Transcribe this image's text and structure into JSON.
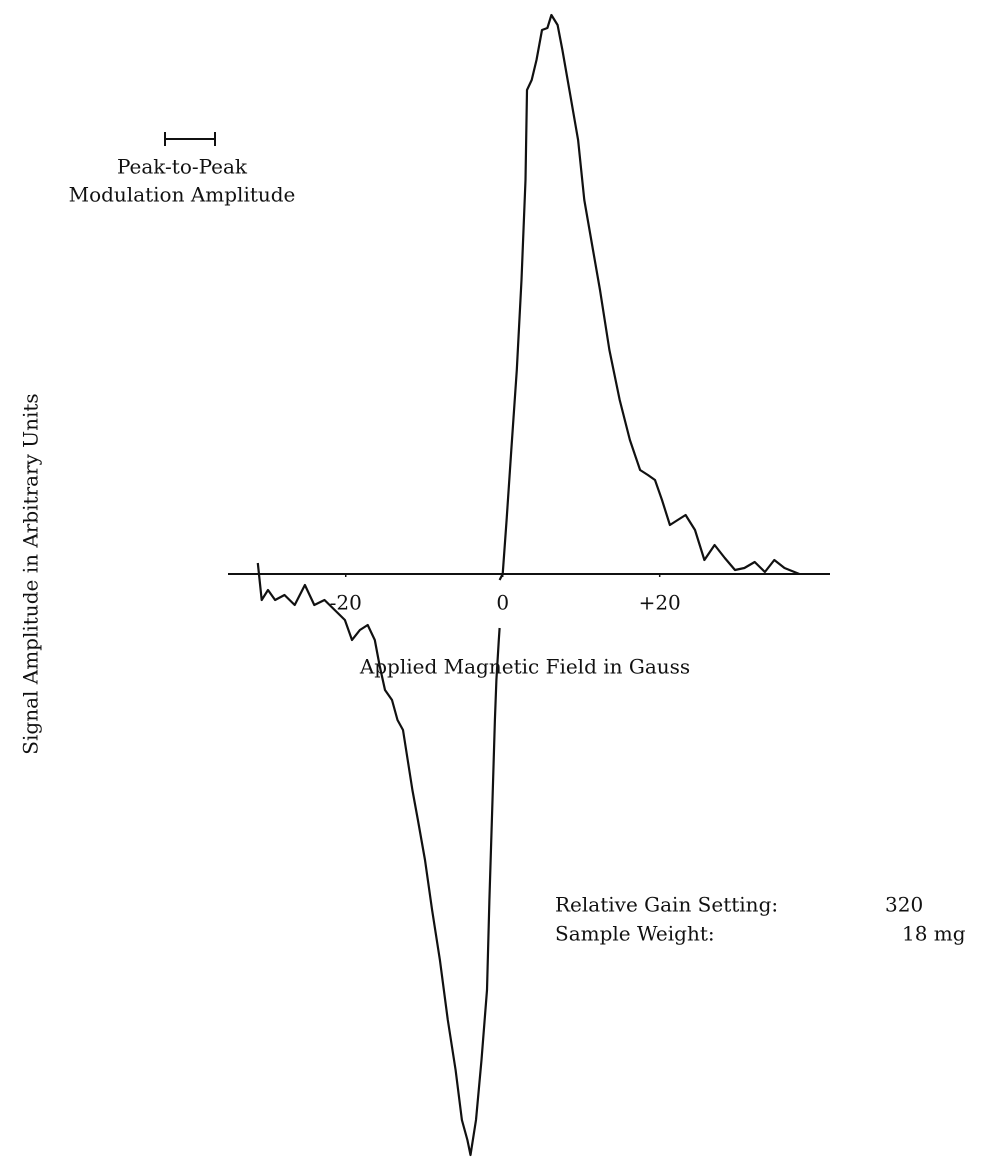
{
  "chart_data": {
    "type": "line",
    "x_label": "Applied Magnetic Field in Gauss",
    "y_label": "Signal Amplitude in Arbitrary Units",
    "annotations": [
      "Peak-to-Peak",
      "Modulation Amplitude",
      "Relative Gain Setting:",
      "320",
      "Sample Weight:",
      "18 mg"
    ],
    "color": "#111111",
    "xlim": [
      -35,
      41.7
    ],
    "ylim": [
      -58.8,
      57.4
    ],
    "xticks": [
      -20,
      0,
      {
        "value": 20,
        "label": "+20"
      }
    ],
    "x": [
      -31.2,
      -30.7,
      -29.9,
      -29.0,
      -27.8,
      -26.5,
      -25.2,
      -24.0,
      -22.7,
      -21.4,
      -20.1,
      -19.2,
      -18.2,
      -17.2,
      -16.3,
      -15.7,
      -15.0,
      -14.1,
      -13.4,
      -12.7,
      -12.1,
      -11.5,
      -10.8,
      -9.9,
      -9.0,
      -8.0,
      -7.0,
      -6.0,
      -5.2,
      -4.5,
      -4.1,
      -3.4,
      -2.7,
      -2.0,
      -1.7,
      -1.3,
      -1.0,
      -0.8,
      -0.5,
      -0.4,
      -0.4,
      -0.4,
      0,
      0.5,
      1.1,
      1.8,
      2.4,
      2.9,
      3.1,
      3.7,
      4.3,
      5.0,
      5.7,
      6.2,
      7.0,
      7.6,
      8.5,
      9.6,
      10.4,
      11.5,
      12.4,
      13.6,
      14.9,
      16.2,
      17.5,
      18.5,
      19.4,
      20.3,
      21.3,
      22.3,
      23.3,
      24.5,
      25.7,
      27.0,
      28.3,
      29.6,
      30.8,
      32.1,
      33.4,
      34.6,
      35.9,
      37.8
    ],
    "values": [
      1.1,
      -2.6,
      -1.6,
      -2.6,
      -2.1,
      -3.1,
      -1.1,
      -3.1,
      -2.6,
      -3.6,
      -4.6,
      -6.6,
      -5.6,
      -5.1,
      -6.6,
      -9.1,
      -11.6,
      -12.6,
      -14.6,
      -15.6,
      -18.6,
      -21.6,
      -24.6,
      -28.6,
      -33.6,
      -38.6,
      -44.6,
      -49.6,
      -54.6,
      -56.6,
      -58.1,
      -54.6,
      -48.6,
      -41.6,
      -32.6,
      -22.6,
      -14.6,
      -10.6,
      -6.6,
      -5.4,
      null,
      -0.6,
      0,
      5.4,
      12.4,
      20.4,
      29.4,
      39.4,
      48.4,
      49.4,
      51.4,
      54.4,
      54.6,
      55.9,
      54.9,
      52.4,
      48.4,
      43.4,
      37.4,
      32.4,
      28.4,
      22.4,
      17.4,
      13.4,
      10.4,
      9.9,
      9.4,
      7.4,
      4.9,
      5.4,
      5.9,
      4.4,
      1.4,
      2.9,
      1.6,
      0.4,
      0.6,
      1.2,
      0.2,
      1.4,
      0.6,
      0
    ]
  }
}
